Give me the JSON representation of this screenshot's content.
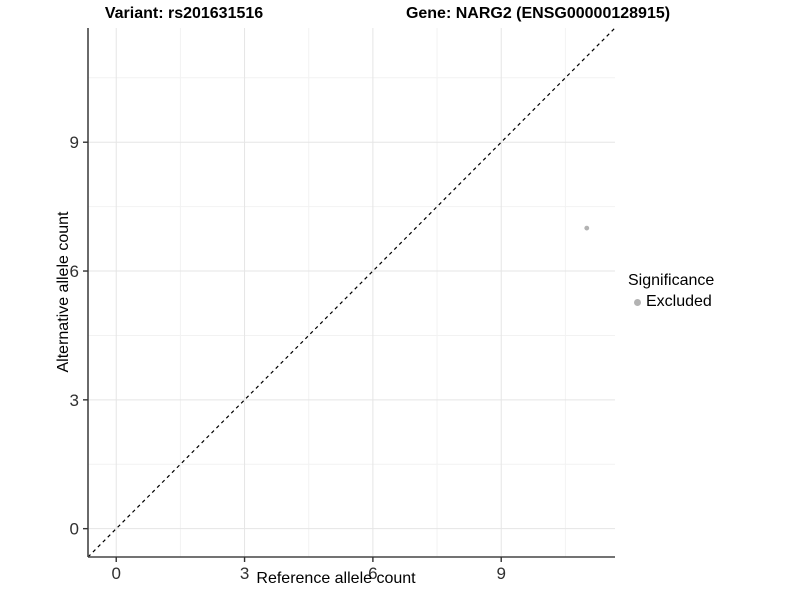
{
  "chart_data": {
    "type": "scatter",
    "titles": {
      "left": "Variant: rs201631516",
      "right": "Gene: NARG2 (ENSG00000128915)"
    },
    "xlabel": "Reference allele count",
    "ylabel": "Alternative allele count",
    "x_ticks": [
      0,
      3,
      6,
      9
    ],
    "y_ticks": [
      0,
      3,
      6,
      9
    ],
    "x_minor_ticks": [
      1.5,
      4.5,
      7.5,
      10.5
    ],
    "y_minor_ticks": [
      1.5,
      4.5,
      7.5,
      10.5
    ],
    "xlim": [
      -0.66,
      11.66
    ],
    "ylim": [
      -0.66,
      11.66
    ],
    "grid": true,
    "identity_line": {
      "equation": "y = x",
      "style": "dashed",
      "color": "#000000"
    },
    "series": [
      {
        "name": "Excluded",
        "color": "#b3b3b3",
        "points": [
          {
            "x": 11,
            "y": 7
          }
        ]
      }
    ],
    "legend": {
      "title": "Significance",
      "position": "right",
      "items": [
        {
          "label": "Excluded",
          "color": "#b3b3b3"
        }
      ]
    }
  },
  "colors": {
    "background": "#ffffff",
    "major_grid": "#e5e5e5",
    "minor_grid": "#f2f2f2",
    "axis_line": "#454545",
    "tick_mark": "#333333",
    "tick_label": "#303030",
    "dashed_line": "#000000"
  }
}
